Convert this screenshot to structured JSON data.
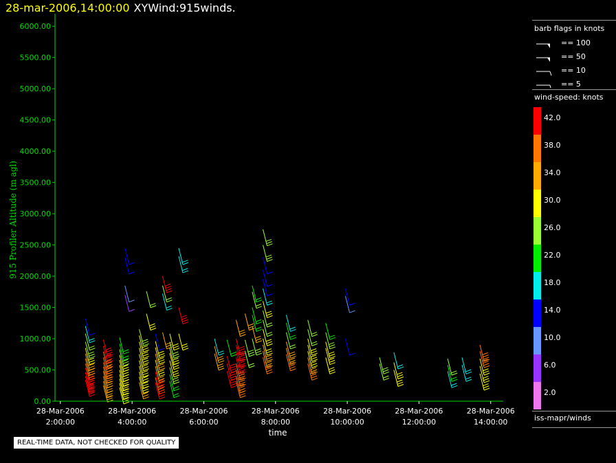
{
  "header": {
    "datetime": "28-mar-2006,14:00:00",
    "title": "XYWind:915winds."
  },
  "chart_data": {
    "type": "scatter",
    "plot_style": "wind barbs",
    "ylabel": "915 Profiler Altitude (m agl)",
    "xlabel": "time",
    "ylim": [
      0,
      6200
    ],
    "y_ticks": [
      "0.00",
      "500.00",
      "1000.00",
      "1500.00",
      "2000.00",
      "2500.00",
      "3000.00",
      "3500.00",
      "4000.00",
      "4500.00",
      "5000.00",
      "5500.00",
      "6000.00"
    ],
    "x_ticks": [
      {
        "hours": 2,
        "date": "28-Mar-2006",
        "time": "2:00:00"
      },
      {
        "hours": 4,
        "date": "28-Mar-2006",
        "time": "4:00:00"
      },
      {
        "hours": 6,
        "date": "28-Mar-2006",
        "time": "6:00:00"
      },
      {
        "hours": 8,
        "date": "28-Mar-2006",
        "time": "8:00:00"
      },
      {
        "hours": 10,
        "date": "28-Mar-2006",
        "time": "10:00:00"
      },
      {
        "hours": 12,
        "date": "28-Mar-2006",
        "time": "12:00:00"
      },
      {
        "hours": 14,
        "date": "28-Mar-2006",
        "time": "14:00:00"
      }
    ],
    "xlim_hours": [
      1.85,
      14.35
    ],
    "profiles": [
      {
        "t": 2.7,
        "w": [
          [
            1320,
            14
          ],
          [
            1200,
            16
          ],
          [
            1080,
            24
          ],
          [
            950,
            26
          ],
          [
            850,
            30
          ],
          [
            760,
            32
          ],
          [
            680,
            34
          ],
          [
            600,
            38
          ],
          [
            530,
            40
          ],
          [
            460,
            42
          ],
          [
            400,
            42
          ],
          [
            340,
            42
          ]
        ]
      },
      {
        "t": 3.2,
        "w": [
          [
            980,
            42
          ],
          [
            880,
            40
          ],
          [
            790,
            36
          ],
          [
            700,
            38
          ],
          [
            620,
            36
          ],
          [
            550,
            38
          ],
          [
            480,
            34
          ],
          [
            400,
            34
          ],
          [
            320,
            34
          ],
          [
            250,
            34
          ]
        ]
      },
      {
        "t": 3.65,
        "w": [
          [
            1020,
            20
          ],
          [
            920,
            22
          ],
          [
            830,
            26
          ],
          [
            740,
            28
          ],
          [
            660,
            28
          ],
          [
            580,
            30
          ],
          [
            500,
            30
          ],
          [
            430,
            28
          ],
          [
            360,
            28
          ],
          [
            290,
            30
          ],
          [
            220,
            30
          ]
        ]
      },
      {
        "t": 3.8,
        "w": [
          [
            2450,
            14
          ],
          [
            2300,
            14
          ],
          [
            1850,
            10
          ],
          [
            1700,
            6
          ]
        ]
      },
      {
        "t": 4.2,
        "w": [
          [
            1150,
            26
          ],
          [
            1050,
            30
          ],
          [
            950,
            28
          ],
          [
            850,
            30
          ],
          [
            750,
            28
          ],
          [
            650,
            28
          ],
          [
            560,
            28
          ],
          [
            470,
            30
          ],
          [
            390,
            30
          ],
          [
            300,
            32
          ]
        ]
      },
      {
        "t": 4.4,
        "w": [
          [
            1760,
            24
          ],
          [
            1400,
            28
          ]
        ]
      },
      {
        "t": 4.65,
        "w": [
          [
            1080,
            14
          ],
          [
            960,
            30
          ],
          [
            860,
            30
          ],
          [
            760,
            32
          ],
          [
            660,
            30
          ],
          [
            560,
            34
          ],
          [
            470,
            40
          ],
          [
            380,
            38
          ],
          [
            300,
            40
          ]
        ]
      },
      {
        "t": 4.85,
        "w": [
          [
            2000,
            42
          ],
          [
            1850,
            24
          ],
          [
            1720,
            16
          ],
          [
            1100,
            34
          ]
        ]
      },
      {
        "t": 5.05,
        "w": [
          [
            1080,
            30
          ],
          [
            950,
            26
          ],
          [
            850,
            28
          ],
          [
            770,
            28
          ],
          [
            650,
            28
          ],
          [
            540,
            26
          ],
          [
            430,
            22
          ],
          [
            320,
            20
          ]
        ]
      },
      {
        "t": 5.3,
        "w": [
          [
            2450,
            18
          ],
          [
            2320,
            18
          ],
          [
            1500,
            42
          ],
          [
            1080,
            30
          ]
        ]
      },
      {
        "t": 6.3,
        "w": [
          [
            1000,
            18
          ],
          [
            880,
            32
          ],
          [
            760,
            34
          ]
        ]
      },
      {
        "t": 6.65,
        "w": [
          [
            980,
            22
          ],
          [
            720,
            40
          ],
          [
            600,
            40
          ],
          [
            480,
            42
          ]
        ]
      },
      {
        "t": 6.9,
        "w": [
          [
            1300,
            34
          ],
          [
            1000,
            40
          ],
          [
            900,
            42
          ],
          [
            800,
            40
          ],
          [
            700,
            40
          ],
          [
            600,
            38
          ],
          [
            500,
            38
          ],
          [
            400,
            38
          ],
          [
            320,
            36
          ]
        ]
      },
      {
        "t": 7.15,
        "w": [
          [
            1400,
            32
          ],
          [
            980,
            26
          ],
          [
            800,
            24
          ]
        ]
      },
      {
        "t": 7.35,
        "w": [
          [
            1850,
            22
          ],
          [
            1750,
            24
          ],
          [
            1500,
            22
          ],
          [
            1380,
            20
          ],
          [
            1200,
            34
          ],
          [
            1000,
            26
          ]
        ]
      },
      {
        "t": 7.65,
        "w": [
          [
            2750,
            26
          ],
          [
            2500,
            26
          ],
          [
            2300,
            14
          ],
          [
            2100,
            14
          ],
          [
            1950,
            14
          ],
          [
            1800,
            16
          ],
          [
            1600,
            28
          ],
          [
            1450,
            24
          ],
          [
            1300,
            24
          ],
          [
            1150,
            28
          ],
          [
            1000,
            30
          ],
          [
            900,
            32
          ],
          [
            800,
            34
          ],
          [
            700,
            38
          ]
        ]
      },
      {
        "t": 8.3,
        "w": [
          [
            1380,
            18
          ],
          [
            1250,
            22
          ],
          [
            1100,
            24
          ],
          [
            950,
            32
          ],
          [
            850,
            34
          ],
          [
            750,
            36
          ]
        ]
      },
      {
        "t": 8.9,
        "w": [
          [
            1300,
            24
          ],
          [
            1150,
            24
          ],
          [
            1000,
            30
          ],
          [
            900,
            30
          ],
          [
            800,
            30
          ],
          [
            700,
            34
          ],
          [
            600,
            36
          ]
        ]
      },
      {
        "t": 9.4,
        "w": [
          [
            1250,
            22
          ],
          [
            1100,
            26
          ],
          [
            950,
            28
          ],
          [
            850,
            28
          ],
          [
            700,
            28
          ]
        ]
      },
      {
        "t": 9.95,
        "w": [
          [
            1800,
            12
          ],
          [
            1680,
            8
          ],
          [
            1000,
            14
          ]
        ]
      },
      {
        "t": 10.9,
        "w": [
          [
            700,
            26
          ],
          [
            600,
            24
          ]
        ]
      },
      {
        "t": 11.3,
        "w": [
          [
            780,
            18
          ],
          [
            620,
            28
          ],
          [
            500,
            30
          ]
        ]
      },
      {
        "t": 12.8,
        "w": [
          [
            680,
            24
          ],
          [
            580,
            20
          ],
          [
            480,
            18
          ]
        ]
      },
      {
        "t": 13.2,
        "w": [
          [
            700,
            18
          ],
          [
            580,
            18
          ]
        ]
      },
      {
        "t": 13.7,
        "w": [
          [
            900,
            36
          ],
          [
            800,
            36
          ],
          [
            680,
            30
          ],
          [
            560,
            28
          ],
          [
            440,
            28
          ]
        ]
      }
    ]
  },
  "panel": {
    "flags_title": "barb flags in knots",
    "flags": [
      {
        "value": 100,
        "label": "== 100"
      },
      {
        "value": 50,
        "label": "== 50"
      },
      {
        "value": 10,
        "label": "== 10"
      },
      {
        "value": 5,
        "label": "== 5"
      }
    ],
    "colorbar_title": "wind-speed: knots",
    "colorbar": [
      {
        "label": "42.0",
        "color": "#ff0000"
      },
      {
        "label": "38.0",
        "color": "#ff7700"
      },
      {
        "label": "34.0",
        "color": "#ffaa00"
      },
      {
        "label": "30.0",
        "color": "#ffff00"
      },
      {
        "label": "26.0",
        "color": "#99ff33"
      },
      {
        "label": "22.0",
        "color": "#00ee00"
      },
      {
        "label": "18.0",
        "color": "#00eeee"
      },
      {
        "label": "14.0",
        "color": "#0000ff"
      },
      {
        "label": "10.0",
        "color": "#6699ff"
      },
      {
        "label": "6.0",
        "color": "#9933ff"
      },
      {
        "label": "2.0",
        "color": "#ee77ee"
      }
    ],
    "source": "iss-mapr/winds"
  },
  "note": "REAL-TIME DATA, NOT CHECKED FOR QUALITY",
  "colors": {
    "axis": "#00dd00",
    "header_datetime": "#ffff00"
  }
}
